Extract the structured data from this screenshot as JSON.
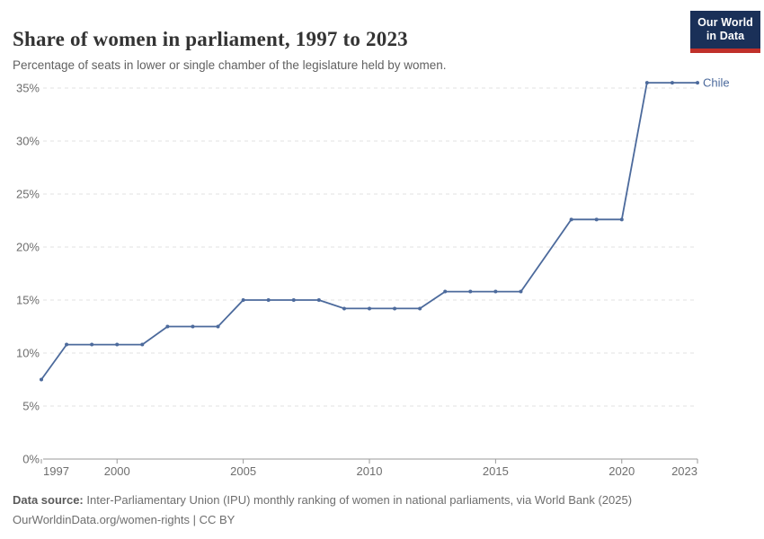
{
  "header": {
    "title": "Share of women in parliament, 1997 to 2023",
    "subtitle": "Percentage of seats in lower or single chamber of the legislature held by women.",
    "logo": {
      "line1": "Our World",
      "line2": "in Data",
      "navy": "#1a3058",
      "red": "#c0302a"
    }
  },
  "chart_data": {
    "type": "line",
    "title": "Share of women in parliament, 1997 to 2023",
    "x": [
      1997,
      1998,
      1999,
      2000,
      2001,
      2002,
      2003,
      2004,
      2005,
      2006,
      2007,
      2008,
      2009,
      2010,
      2011,
      2012,
      2013,
      2014,
      2015,
      2016,
      2017,
      2018,
      2019,
      2020,
      2021,
      2022,
      2023
    ],
    "series": [
      {
        "name": "Chile",
        "color": "#4C6A9C",
        "values": [
          7.5,
          10.8,
          10.8,
          10.8,
          10.8,
          12.5,
          12.5,
          12.5,
          15.0,
          15.0,
          15.0,
          15.0,
          14.2,
          14.2,
          14.2,
          14.2,
          15.8,
          15.8,
          15.8,
          15.8,
          null,
          22.6,
          22.6,
          22.6,
          35.5,
          35.5,
          35.5
        ]
      }
    ],
    "xlabel": "",
    "ylabel": "",
    "x_ticks": [
      1997,
      2000,
      2005,
      2010,
      2015,
      2020,
      2023
    ],
    "y_ticks": [
      0,
      5,
      10,
      15,
      20,
      25,
      30,
      35
    ],
    "y_tick_suffix": "%",
    "xlim": [
      1997,
      2023
    ],
    "ylim": [
      0,
      35.5
    ],
    "grid": "horizontal-dashed",
    "legend_position": "end-of-line",
    "colors": {
      "grid": "#e0e0e0",
      "axis": "#9a9a9a",
      "tick_label": "#6e6e6e"
    }
  },
  "footer": {
    "source_label": "Data source:",
    "source_text": " Inter-Parliamentary Union (IPU) monthly ranking of women in national parliaments, via World Bank (2025)",
    "license_line": "OurWorldinData.org/women-rights | CC BY"
  }
}
